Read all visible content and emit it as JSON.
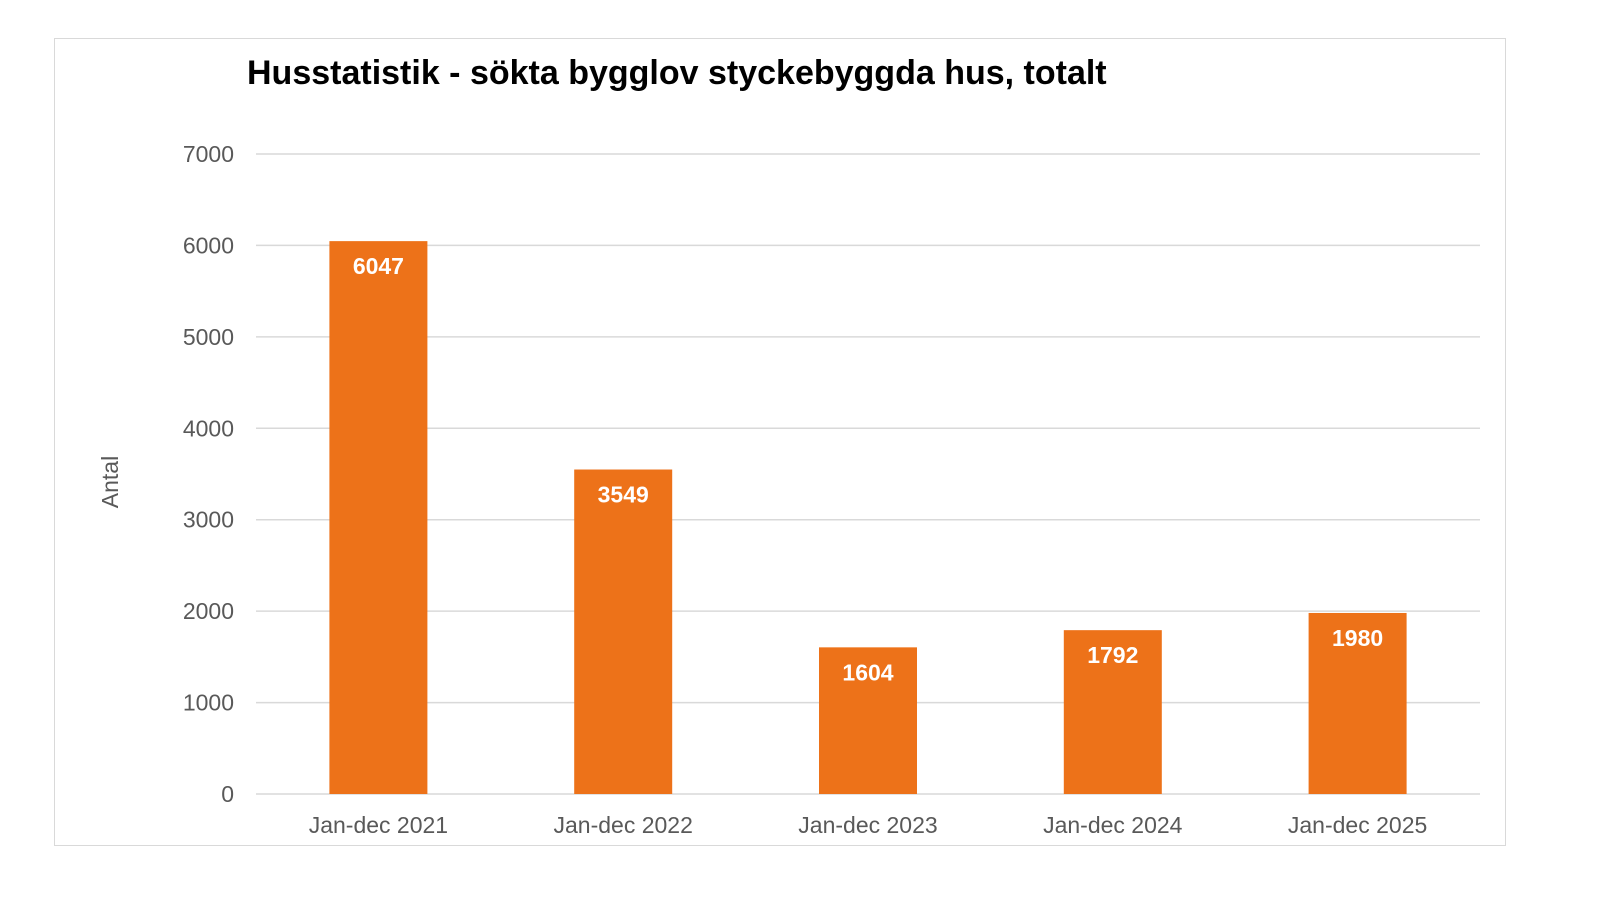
{
  "chart_data": {
    "type": "bar",
    "title": "Husstatistik - sökta bygglov styckebyggda hus, totalt",
    "xlabel": "",
    "ylabel": "Antal",
    "categories": [
      "Jan-dec 2021",
      "Jan-dec 2022",
      "Jan-dec 2023",
      "Jan-dec 2024",
      "Jan-dec 2025"
    ],
    "values": [
      6047,
      3549,
      1604,
      1792,
      1980
    ],
    "ylim": [
      0,
      7000
    ],
    "yticks": [
      0,
      1000,
      2000,
      3000,
      4000,
      5000,
      6000,
      7000
    ],
    "grid": true,
    "legend": "none",
    "colors": {
      "bar": "#ED7219",
      "grid": "#d9d9d9",
      "text": "#595959"
    }
  }
}
